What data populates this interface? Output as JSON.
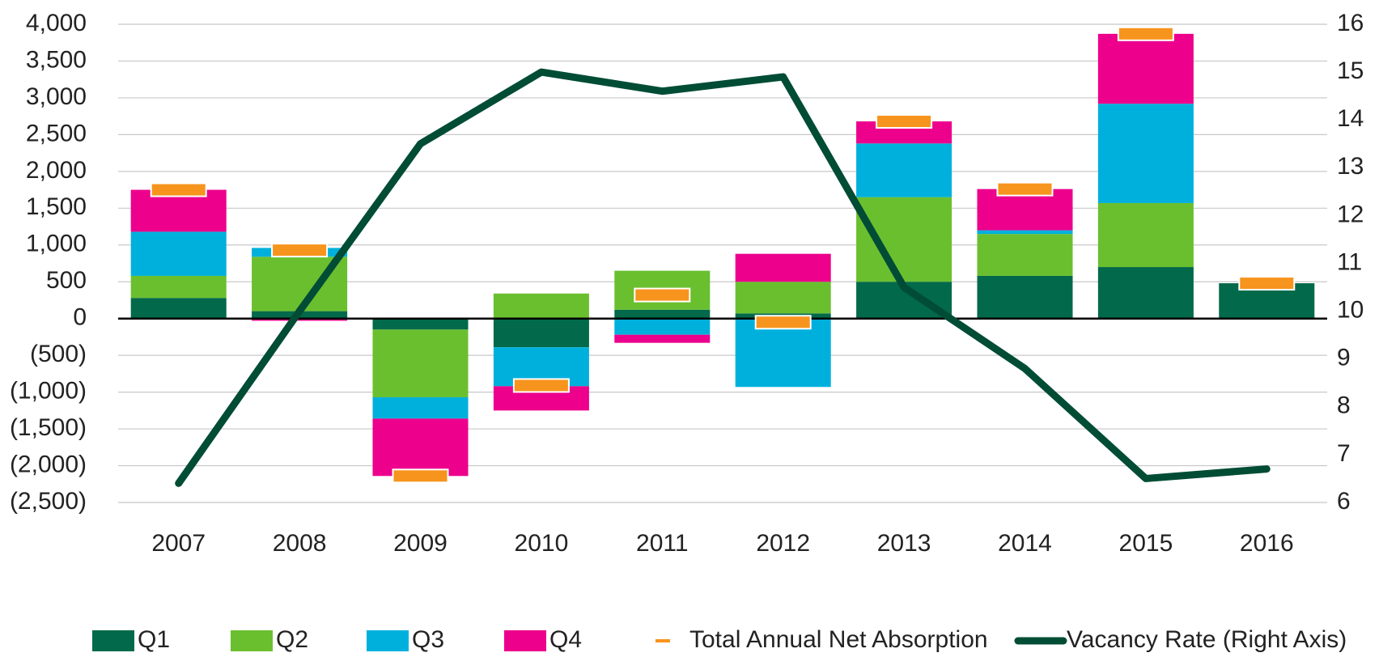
{
  "chart_data": {
    "type": "bar",
    "stacked": true,
    "categories": [
      "2007",
      "2008",
      "2009",
      "2010",
      "2011",
      "2012",
      "2013",
      "2014",
      "2015",
      "2016"
    ],
    "series": [
      {
        "name": "Q1",
        "type": "bar",
        "color": "#02694a",
        "values": [
          280,
          100,
          -150,
          -390,
          120,
          70,
          500,
          580,
          700,
          480
        ]
      },
      {
        "name": "Q2",
        "type": "bar",
        "color": "#6abf2f",
        "values": [
          300,
          740,
          -920,
          340,
          530,
          430,
          1150,
          570,
          870,
          0
        ]
      },
      {
        "name": "Q3",
        "type": "bar",
        "color": "#00b0dc",
        "values": [
          600,
          120,
          -290,
          -530,
          -220,
          -930,
          730,
          50,
          1350,
          0
        ]
      },
      {
        "name": "Q4",
        "type": "bar",
        "color": "#ec008c",
        "values": [
          570,
          -30,
          -780,
          -330,
          -110,
          380,
          300,
          560,
          950,
          0
        ]
      },
      {
        "name": "Total Annual Net Absorption",
        "type": "marker",
        "color": "#f7941d",
        "values": [
          1750,
          930,
          -2140,
          -910,
          320,
          -50,
          2680,
          1760,
          3870,
          480
        ]
      },
      {
        "name": "Vacancy Rate (Right Axis)",
        "type": "line",
        "axis": "y2",
        "color": "#004c35",
        "values": [
          6.4,
          10.0,
          13.5,
          15.0,
          14.6,
          14.9,
          10.5,
          8.8,
          6.5,
          6.7
        ]
      }
    ],
    "ylim": [
      -2500,
      4000
    ],
    "yticks": [
      {
        "value": -2500,
        "label": "(2,500)"
      },
      {
        "value": -2000,
        "label": "(2,000)"
      },
      {
        "value": -1500,
        "label": "(1,500)"
      },
      {
        "value": -1000,
        "label": "(1,000)"
      },
      {
        "value": -500,
        "label": "(500)"
      },
      0,
      500,
      {
        "value": 1000,
        "label": "1,000"
      },
      {
        "value": 1500,
        "label": "1,500"
      },
      {
        "value": 2000,
        "label": "2,000"
      },
      {
        "value": 2500,
        "label": "2,500"
      },
      {
        "value": 3000,
        "label": "3,000"
      },
      {
        "value": 3500,
        "label": "3,500"
      },
      {
        "value": 4000,
        "label": "4,000"
      }
    ],
    "y2lim": [
      6,
      16
    ],
    "y2ticks": [
      6,
      7,
      8,
      9,
      10,
      11,
      12,
      13,
      14,
      15,
      16
    ],
    "grid": true,
    "legend": "bottom"
  }
}
